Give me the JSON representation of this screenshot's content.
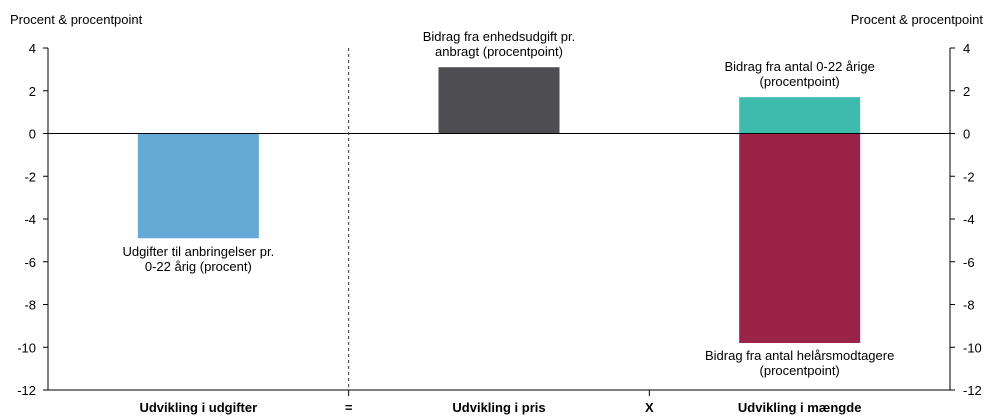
{
  "chart_data": {
    "type": "bar",
    "y_unit_left": "Procent & procentpoint",
    "y_unit_right": "Procent & procentpoint",
    "ylim": [
      -12,
      4
    ],
    "yticks": [
      "-12",
      "-10",
      "-8",
      "-6",
      "-4",
      "-2",
      "0",
      "2",
      "4"
    ],
    "ytick_values": [
      -12,
      -10,
      -8,
      -6,
      -4,
      -2,
      0,
      2,
      4
    ],
    "grid": false,
    "categories": [
      "Udvikling i udgifter",
      "Udvikling i pris",
      "Udvikling i mængde"
    ],
    "operators": [
      "=",
      "X"
    ],
    "bars": [
      {
        "category": 0,
        "base": 0,
        "value": -4.9,
        "color": "#65a9d6",
        "label": [
          "Udgifter til anbringelser pr.",
          "0-22 årig (procent)"
        ]
      },
      {
        "category": 1,
        "base": 0,
        "value": 3.1,
        "color": "#4d4d52",
        "label": [
          "Bidrag fra enhedsudgift pr.",
          "anbragt (procentpoint)"
        ]
      },
      {
        "category": 2,
        "base": 0,
        "value": 1.7,
        "color": "#3dbcae",
        "label": [
          "Bidrag fra antal 0-22 årige",
          "(procentpoint)"
        ]
      },
      {
        "category": 2,
        "base": 0,
        "value": -9.8,
        "color": "#9b2347",
        "label": [
          "Bidrag fra antal helårsmodtagere",
          "(procentpoint)"
        ]
      }
    ]
  }
}
